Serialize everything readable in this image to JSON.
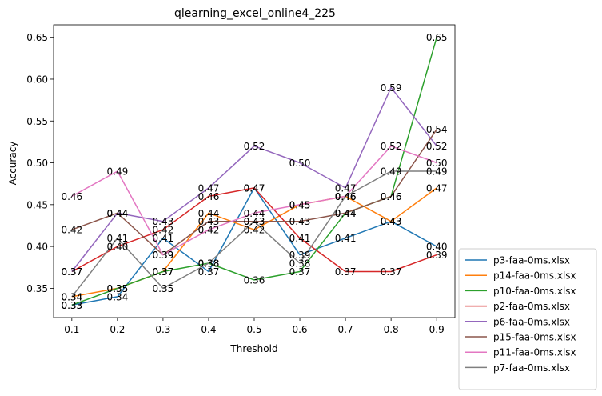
{
  "chart_data": {
    "type": "line",
    "title": "qlearning_excel_online4_225",
    "xlabel": "Threshold",
    "ylabel": "Accuracy",
    "x": [
      0.1,
      0.2,
      0.3,
      0.4,
      0.5,
      0.6,
      0.7,
      0.8,
      0.9
    ],
    "xticks": [
      "0.1",
      "0.2",
      "0.3",
      "0.4",
      "0.5",
      "0.6",
      "0.7",
      "0.8",
      "0.9"
    ],
    "yticks": [
      "0.35",
      "0.40",
      "0.45",
      "0.50",
      "0.55",
      "0.60",
      "0.65"
    ],
    "ylim": [
      0.315,
      0.665
    ],
    "xlim": [
      0.06,
      0.94
    ],
    "legend_position": "outside-bottom-right",
    "series": [
      {
        "name": "p3-faa-0ms.xlsx",
        "color": "#1f77b4",
        "values": [
          0.33,
          0.34,
          0.41,
          0.37,
          0.47,
          0.39,
          0.41,
          0.43,
          0.4
        ]
      },
      {
        "name": "p14-faa-0ms.xlsx",
        "color": "#ff7f0e",
        "values": [
          0.34,
          0.35,
          0.37,
          0.44,
          0.42,
          0.45,
          0.46,
          0.43,
          0.47
        ]
      },
      {
        "name": "p10-faa-0ms.xlsx",
        "color": "#2ca02c",
        "values": [
          0.33,
          0.35,
          0.37,
          0.38,
          0.36,
          0.37,
          0.44,
          0.46,
          0.65
        ]
      },
      {
        "name": "p2-faa-0ms.xlsx",
        "color": "#d62728",
        "values": [
          0.37,
          0.4,
          0.42,
          0.46,
          0.47,
          0.41,
          0.37,
          0.37,
          0.39
        ]
      },
      {
        "name": "p6-faa-0ms.xlsx",
        "color": "#9467bd",
        "values": [
          0.37,
          0.44,
          0.43,
          0.47,
          0.52,
          0.5,
          0.47,
          0.59,
          0.52
        ]
      },
      {
        "name": "p15-faa-0ms.xlsx",
        "color": "#8c564b",
        "values": [
          0.42,
          0.44,
          0.39,
          0.43,
          0.43,
          0.43,
          0.44,
          0.46,
          0.54
        ]
      },
      {
        "name": "p11-faa-0ms.xlsx",
        "color": "#e377c2",
        "values": [
          0.46,
          0.49,
          0.39,
          0.42,
          0.44,
          0.45,
          0.46,
          0.52,
          0.5
        ]
      },
      {
        "name": "p7-faa-0ms.xlsx",
        "color": "#7f7f7f",
        "values": [
          0.34,
          0.41,
          0.35,
          0.38,
          0.43,
          0.38,
          0.46,
          0.49,
          0.49
        ]
      }
    ]
  }
}
